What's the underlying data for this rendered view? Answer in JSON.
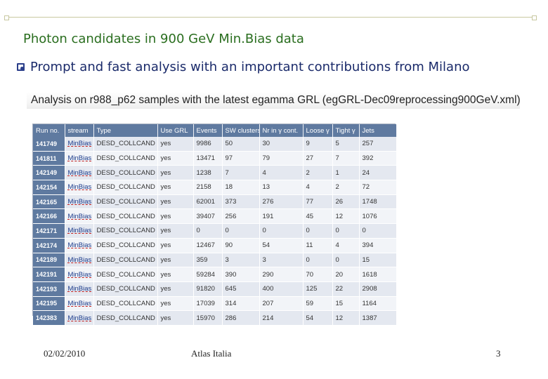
{
  "slide": {
    "title": "Photon candidates in 900 GeV Min.Bias data",
    "bullet": "Prompt and fast analysis with an important contributions from Milano",
    "analysis_caption": "Analysis on r988_p62 samples with the latest egamma GRL (egGRL-Dec09reprocessing900GeV.xml)"
  },
  "table": {
    "headers": [
      "Run no.",
      "stream",
      "Type",
      "Use GRL",
      "Events",
      "SW clusters",
      "Nr in γ cont.",
      "Loose γ",
      "Tight γ",
      "Jets"
    ],
    "rows": [
      [
        "141749",
        "MinBias",
        "DESD_COLLCAND",
        "yes",
        "9986",
        "50",
        "30",
        "9",
        "5",
        "257"
      ],
      [
        "141811",
        "MinBias",
        "DESD_COLLCAND",
        "yes",
        "13471",
        "97",
        "79",
        "27",
        "7",
        "392"
      ],
      [
        "142149",
        "MinBias",
        "DESD_COLLCAND",
        "yes",
        "1238",
        "7",
        "4",
        "2",
        "1",
        "24"
      ],
      [
        "142154",
        "MinBias",
        "DESD_COLLCAND",
        "yes",
        "2158",
        "18",
        "13",
        "4",
        "2",
        "72"
      ],
      [
        "142165",
        "MinBias",
        "DESD_COLLCAND",
        "yes",
        "62001",
        "373",
        "276",
        "77",
        "26",
        "1748"
      ],
      [
        "142166",
        "MinBias",
        "DESD_COLLCAND",
        "yes",
        "39407",
        "256",
        "191",
        "45",
        "12",
        "1076"
      ],
      [
        "142171",
        "MinBias",
        "DESD_COLLCAND",
        "yes",
        "0",
        "0",
        "0",
        "0",
        "0",
        "0"
      ],
      [
        "142174",
        "MinBias",
        "DESD_COLLCAND",
        "yes",
        "12467",
        "90",
        "54",
        "11",
        "4",
        "394"
      ],
      [
        "142189",
        "MinBias",
        "DESD_COLLCAND",
        "yes",
        "359",
        "3",
        "3",
        "0",
        "0",
        "15"
      ],
      [
        "142191",
        "MinBias",
        "DESD_COLLCAND",
        "yes",
        "59284",
        "390",
        "290",
        "70",
        "20",
        "1618"
      ],
      [
        "142193",
        "MinBias",
        "DESD_COLLCAND",
        "yes",
        "91820",
        "645",
        "400",
        "125",
        "22",
        "2908"
      ],
      [
        "142195",
        "MinBias",
        "DESD_COLLCAND",
        "yes",
        "17039",
        "314",
        "207",
        "59",
        "15",
        "1164"
      ],
      [
        "142383",
        "MinBias",
        "DESD_COLLCAND",
        "yes",
        "15970",
        "286",
        "214",
        "54",
        "12",
        "1387"
      ]
    ]
  },
  "footer": {
    "date": "02/02/2010",
    "center": "Atlas Italia",
    "page": "3"
  }
}
